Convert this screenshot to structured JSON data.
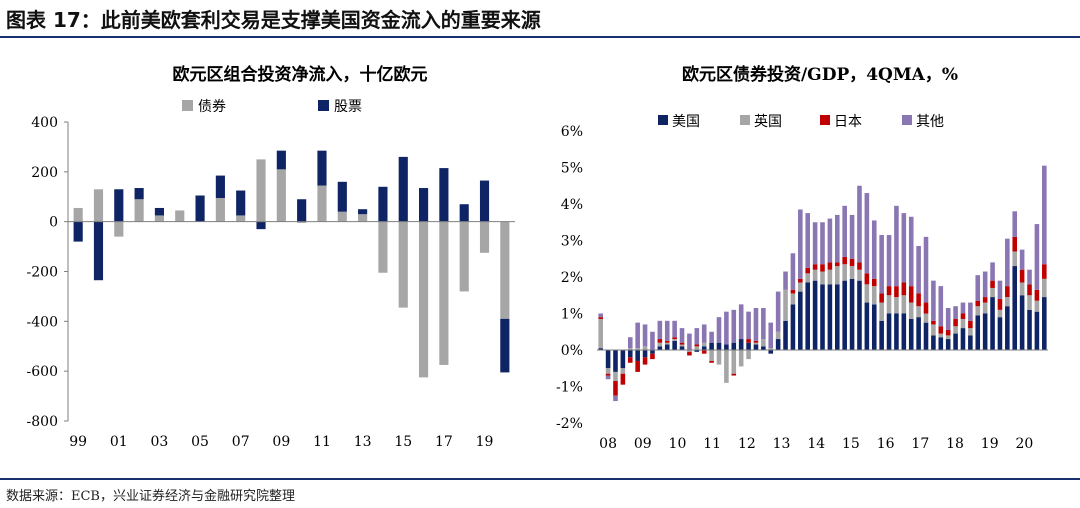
{
  "figure": {
    "title": "图表 17：此前美欧套利交易是支撑美国资金流入的重要来源",
    "source": "数据来源：ECB，兴业证券经济与金融研究院整理"
  },
  "colors": {
    "bond": "#a6a6a6",
    "equity": "#0f2464",
    "us": "#0f2464",
    "uk": "#a6a6a6",
    "jp": "#c00000",
    "other": "#8a76b2",
    "rule": "#1a2f6e"
  },
  "chart_data": [
    {
      "type": "bar",
      "stacked": true,
      "title": "欧元区组合投资净流入，十亿欧元",
      "ylim": [
        -800,
        400
      ],
      "yticks": [
        400,
        200,
        0,
        -200,
        -400,
        -600,
        -800
      ],
      "xtick_labels": [
        "99",
        "01",
        "03",
        "05",
        "07",
        "09",
        "11",
        "13",
        "15",
        "17",
        "19"
      ],
      "x": [
        1999,
        2000,
        2001,
        2002,
        2003,
        2004,
        2005,
        2006,
        2007,
        2008,
        2009,
        2010,
        2011,
        2012,
        2013,
        2014,
        2015,
        2016,
        2017,
        2018,
        2019,
        2020
      ],
      "legend_position": "top",
      "series": [
        {
          "name": "债券",
          "values": [
            55,
            130,
            -60,
            90,
            25,
            45,
            0,
            95,
            25,
            250,
            210,
            -5,
            145,
            40,
            30,
            -205,
            -345,
            -625,
            -575,
            -280,
            -125,
            -390
          ]
        },
        {
          "name": "股票",
          "values": [
            -80,
            -235,
            130,
            45,
            30,
            0,
            105,
            90,
            100,
            -30,
            75,
            90,
            140,
            120,
            20,
            140,
            260,
            135,
            215,
            70,
            165,
            -215
          ]
        }
      ]
    },
    {
      "type": "bar",
      "stacked": true,
      "title": "欧元区债券投资/GDP，4QMA，%",
      "ylim": [
        -2,
        6
      ],
      "yticks": [
        "6%",
        "5%",
        "4%",
        "3%",
        "2%",
        "1%",
        "0%",
        "-1%",
        "-2%"
      ],
      "xtick_labels": [
        "08",
        "09",
        "10",
        "11",
        "12",
        "13",
        "14",
        "15",
        "16",
        "17",
        "18",
        "19",
        "20"
      ],
      "legend_position": "top",
      "series": [
        {
          "name": "美国",
          "values": [
            0.05,
            -0.5,
            -0.6,
            -0.5,
            -0.2,
            -0.3,
            -0.2,
            -0.1,
            0.1,
            0.15,
            0.25,
            0.1,
            0.0,
            -0.05,
            0.1,
            0.2,
            0.2,
            0.15,
            0.2,
            0.3,
            0.2,
            0.15,
            0.1,
            -0.1,
            0.3,
            0.8,
            1.25,
            1.6,
            1.85,
            1.9,
            1.8,
            1.8,
            1.8,
            1.9,
            1.95,
            1.9,
            1.3,
            1.25,
            0.8,
            1.0,
            1.0,
            1.0,
            0.85,
            0.9,
            0.75,
            0.4,
            0.35,
            0.3,
            0.45,
            0.6,
            0.4,
            0.95,
            1.0,
            1.45,
            0.9,
            1.2,
            2.3,
            1.5,
            1.1,
            1.05,
            1.45
          ]
        },
        {
          "name": "英国",
          "values": [
            0.8,
            -0.15,
            -0.25,
            -0.15,
            0.05,
            0.05,
            0.1,
            0.0,
            0.1,
            0.05,
            0.05,
            0.05,
            -0.05,
            0.1,
            0.1,
            -0.3,
            -0.4,
            -0.9,
            -0.65,
            -0.45,
            -0.25,
            0.05,
            0.2,
            0.05,
            0.2,
            0.85,
            0.3,
            0.25,
            0.25,
            0.3,
            0.35,
            0.4,
            0.5,
            0.45,
            0.35,
            0.3,
            0.5,
            0.5,
            0.5,
            0.5,
            0.45,
            0.5,
            0.45,
            0.3,
            0.25,
            0.3,
            0.1,
            0.1,
            0.2,
            0.25,
            0.2,
            0.25,
            0.3,
            0.25,
            0.2,
            0.25,
            0.4,
            0.35,
            0.4,
            0.3,
            0.5
          ]
        },
        {
          "name": "日本",
          "values": [
            0.05,
            -0.05,
            -0.4,
            -0.3,
            -0.15,
            -0.3,
            -0.2,
            -0.15,
            0.1,
            0.05,
            0.05,
            0.05,
            -0.1,
            0.05,
            -0.1,
            -0.05,
            0.0,
            0.0,
            -0.05,
            0.0,
            0.1,
            0.05,
            0.0,
            0.0,
            0.0,
            0.0,
            0.1,
            0.1,
            0.15,
            0.15,
            0.2,
            0.2,
            0.1,
            0.2,
            0.2,
            0.2,
            0.3,
            0.2,
            0.25,
            0.25,
            0.3,
            0.35,
            0.45,
            0.35,
            0.3,
            0.1,
            0.2,
            0.15,
            0.2,
            0.15,
            0.2,
            0.15,
            0.15,
            0.2,
            0.3,
            0.3,
            0.4,
            0.35,
            0.3,
            0.3,
            0.4
          ]
        },
        {
          "name": "其他",
          "values": [
            0.1,
            -0.1,
            -0.15,
            0.0,
            0.3,
            0.7,
            0.6,
            0.5,
            0.5,
            0.55,
            0.45,
            0.4,
            0.45,
            0.45,
            0.5,
            0.3,
            0.7,
            0.9,
            0.9,
            0.95,
            0.75,
            0.9,
            0.85,
            0.7,
            1.1,
            0.5,
            1.0,
            1.9,
            1.5,
            1.15,
            1.15,
            1.2,
            1.3,
            1.4,
            1.2,
            2.1,
            2.2,
            1.6,
            1.6,
            1.4,
            2.2,
            1.9,
            1.9,
            1.3,
            1.8,
            1.1,
            1.1,
            0.6,
            0.35,
            0.3,
            0.5,
            0.7,
            0.7,
            0.5,
            0.5,
            1.3,
            0.7,
            0.55,
            0.4,
            1.8,
            2.7
          ]
        }
      ]
    }
  ]
}
